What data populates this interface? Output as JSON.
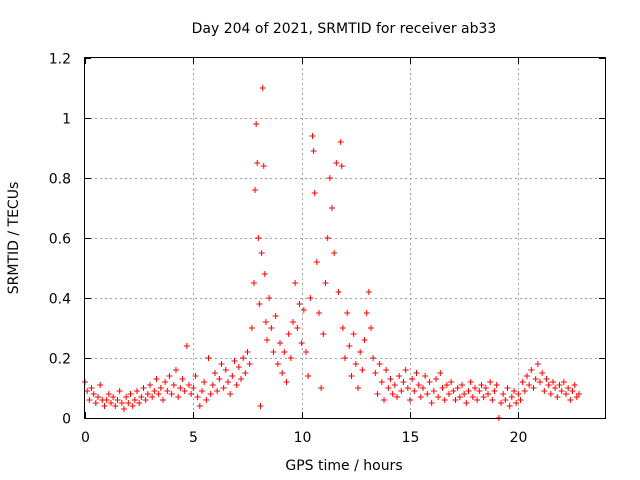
{
  "chart_data": {
    "type": "scatter",
    "title": "Day 204 of 2021, SRMTID for receiver ab33",
    "xlabel": "GPS time / hours",
    "ylabel": "SRMTID / TECUs",
    "xlim": [
      0,
      24
    ],
    "ylim": [
      0,
      1.2
    ],
    "xticks": [
      0,
      5,
      10,
      15,
      20
    ],
    "xtick_labels": [
      "0",
      "5",
      "10",
      "15",
      "20"
    ],
    "yticks": [
      0,
      0.2,
      0.4,
      0.6,
      0.8,
      1.0,
      1.2
    ],
    "ytick_labels": [
      "0",
      "0.2",
      "0.4",
      "0.6",
      "0.8",
      "1",
      "1.2"
    ],
    "grid": true,
    "marker": "plus",
    "color": "#ff0000",
    "series": [
      {
        "name": "SRMTID",
        "points": [
          [
            0.0,
            0.12
          ],
          [
            0.1,
            0.09
          ],
          [
            0.2,
            0.06
          ],
          [
            0.3,
            0.1
          ],
          [
            0.4,
            0.08
          ],
          [
            0.5,
            0.05
          ],
          [
            0.6,
            0.07
          ],
          [
            0.7,
            0.11
          ],
          [
            0.8,
            0.06
          ],
          [
            0.9,
            0.04
          ],
          [
            1.0,
            0.06
          ],
          [
            1.1,
            0.08
          ],
          [
            1.2,
            0.05
          ],
          [
            1.3,
            0.07
          ],
          [
            1.4,
            0.04
          ],
          [
            1.5,
            0.06
          ],
          [
            1.6,
            0.09
          ],
          [
            1.7,
            0.05
          ],
          [
            1.8,
            0.03
          ],
          [
            1.9,
            0.07
          ],
          [
            2.0,
            0.05
          ],
          [
            2.1,
            0.08
          ],
          [
            2.2,
            0.04
          ],
          [
            2.3,
            0.06
          ],
          [
            2.4,
            0.09
          ],
          [
            2.5,
            0.05
          ],
          [
            2.6,
            0.07
          ],
          [
            2.7,
            0.1
          ],
          [
            2.8,
            0.06
          ],
          [
            2.9,
            0.08
          ],
          [
            3.0,
            0.11
          ],
          [
            3.1,
            0.07
          ],
          [
            3.2,
            0.09
          ],
          [
            3.3,
            0.13
          ],
          [
            3.4,
            0.08
          ],
          [
            3.5,
            0.1
          ],
          [
            3.6,
            0.06
          ],
          [
            3.7,
            0.12
          ],
          [
            3.8,
            0.09
          ],
          [
            3.9,
            0.14
          ],
          [
            4.0,
            0.08
          ],
          [
            4.1,
            0.11
          ],
          [
            4.2,
            0.16
          ],
          [
            4.3,
            0.07
          ],
          [
            4.4,
            0.1
          ],
          [
            4.5,
            0.13
          ],
          [
            4.6,
            0.09
          ],
          [
            4.7,
            0.24
          ],
          [
            4.8,
            0.11
          ],
          [
            4.9,
            0.08
          ],
          [
            5.0,
            0.1
          ],
          [
            5.1,
            0.14
          ],
          [
            5.2,
            0.07
          ],
          [
            5.3,
            0.04
          ],
          [
            5.4,
            0.09
          ],
          [
            5.5,
            0.12
          ],
          [
            5.6,
            0.06
          ],
          [
            5.7,
            0.2
          ],
          [
            5.8,
            0.08
          ],
          [
            5.9,
            0.11
          ],
          [
            6.0,
            0.15
          ],
          [
            6.1,
            0.09
          ],
          [
            6.2,
            0.13
          ],
          [
            6.3,
            0.18
          ],
          [
            6.4,
            0.1
          ],
          [
            6.5,
            0.16
          ],
          [
            6.6,
            0.12
          ],
          [
            6.7,
            0.08
          ],
          [
            6.8,
            0.14
          ],
          [
            6.9,
            0.19
          ],
          [
            7.0,
            0.11
          ],
          [
            7.1,
            0.17
          ],
          [
            7.2,
            0.13
          ],
          [
            7.3,
            0.2
          ],
          [
            7.4,
            0.15
          ],
          [
            7.5,
            0.22
          ],
          [
            7.6,
            0.18
          ],
          [
            7.7,
            0.3
          ],
          [
            7.8,
            0.45
          ],
          [
            7.85,
            0.76
          ],
          [
            7.9,
            0.98
          ],
          [
            7.95,
            0.85
          ],
          [
            8.0,
            0.6
          ],
          [
            8.05,
            0.38
          ],
          [
            8.1,
            0.04
          ],
          [
            8.15,
            0.55
          ],
          [
            8.2,
            1.1
          ],
          [
            8.25,
            0.84
          ],
          [
            8.3,
            0.48
          ],
          [
            8.35,
            0.32
          ],
          [
            8.4,
            0.26
          ],
          [
            8.5,
            0.4
          ],
          [
            8.6,
            0.3
          ],
          [
            8.7,
            0.22
          ],
          [
            8.8,
            0.34
          ],
          [
            8.9,
            0.18
          ],
          [
            9.0,
            0.25
          ],
          [
            9.1,
            0.15
          ],
          [
            9.2,
            0.22
          ],
          [
            9.3,
            0.12
          ],
          [
            9.4,
            0.28
          ],
          [
            9.5,
            0.2
          ],
          [
            9.6,
            0.32
          ],
          [
            9.7,
            0.45
          ],
          [
            9.8,
            0.3
          ],
          [
            9.9,
            0.38
          ],
          [
            10.0,
            0.25
          ],
          [
            10.1,
            0.36
          ],
          [
            10.2,
            0.22
          ],
          [
            10.3,
            0.14
          ],
          [
            10.4,
            0.4
          ],
          [
            10.5,
            0.94
          ],
          [
            10.55,
            0.89
          ],
          [
            10.6,
            0.75
          ],
          [
            10.7,
            0.52
          ],
          [
            10.8,
            0.35
          ],
          [
            10.9,
            0.1
          ],
          [
            11.0,
            0.28
          ],
          [
            11.1,
            0.45
          ],
          [
            11.2,
            0.6
          ],
          [
            11.3,
            0.8
          ],
          [
            11.4,
            0.7
          ],
          [
            11.5,
            0.55
          ],
          [
            11.6,
            0.85
          ],
          [
            11.7,
            0.42
          ],
          [
            11.8,
            0.92
          ],
          [
            11.85,
            0.84
          ],
          [
            11.9,
            0.3
          ],
          [
            12.0,
            0.2
          ],
          [
            12.1,
            0.35
          ],
          [
            12.2,
            0.24
          ],
          [
            12.3,
            0.14
          ],
          [
            12.4,
            0.28
          ],
          [
            12.5,
            0.18
          ],
          [
            12.6,
            0.1
          ],
          [
            12.7,
            0.22
          ],
          [
            12.8,
            0.16
          ],
          [
            12.9,
            0.26
          ],
          [
            13.0,
            0.35
          ],
          [
            13.1,
            0.42
          ],
          [
            13.2,
            0.3
          ],
          [
            13.3,
            0.2
          ],
          [
            13.4,
            0.15
          ],
          [
            13.5,
            0.08
          ],
          [
            13.6,
            0.18
          ],
          [
            13.7,
            0.12
          ],
          [
            13.8,
            0.06
          ],
          [
            13.9,
            0.16
          ],
          [
            14.0,
            0.1
          ],
          [
            14.1,
            0.13
          ],
          [
            14.2,
            0.08
          ],
          [
            14.3,
            0.11
          ],
          [
            14.4,
            0.07
          ],
          [
            14.5,
            0.14
          ],
          [
            14.6,
            0.09
          ],
          [
            14.7,
            0.12
          ],
          [
            14.8,
            0.16
          ],
          [
            14.9,
            0.1
          ],
          [
            15.0,
            0.06
          ],
          [
            15.1,
            0.13
          ],
          [
            15.2,
            0.09
          ],
          [
            15.3,
            0.15
          ],
          [
            15.4,
            0.11
          ],
          [
            15.5,
            0.07
          ],
          [
            15.6,
            0.1
          ],
          [
            15.7,
            0.14
          ],
          [
            15.8,
            0.08
          ],
          [
            15.9,
            0.12
          ],
          [
            16.0,
            0.05
          ],
          [
            16.1,
            0.09
          ],
          [
            16.2,
            0.13
          ],
          [
            16.3,
            0.07
          ],
          [
            16.4,
            0.15
          ],
          [
            16.5,
            0.1
          ],
          [
            16.6,
            0.06
          ],
          [
            16.7,
            0.11
          ],
          [
            16.8,
            0.08
          ],
          [
            16.9,
            0.12
          ],
          [
            17.0,
            0.09
          ],
          [
            17.1,
            0.06
          ],
          [
            17.2,
            0.1
          ],
          [
            17.3,
            0.07
          ],
          [
            17.4,
            0.11
          ],
          [
            17.5,
            0.08
          ],
          [
            17.6,
            0.05
          ],
          [
            17.7,
            0.09
          ],
          [
            17.8,
            0.12
          ],
          [
            17.9,
            0.07
          ],
          [
            18.0,
            0.1
          ],
          [
            18.1,
            0.06
          ],
          [
            18.2,
            0.09
          ],
          [
            18.3,
            0.11
          ],
          [
            18.4,
            0.07
          ],
          [
            18.5,
            0.1
          ],
          [
            18.6,
            0.08
          ],
          [
            18.7,
            0.12
          ],
          [
            18.8,
            0.06
          ],
          [
            18.9,
            0.09
          ],
          [
            19.0,
            0.11
          ],
          [
            19.1,
            0.0
          ],
          [
            19.2,
            0.05
          ],
          [
            19.3,
            0.08
          ],
          [
            19.4,
            0.06
          ],
          [
            19.5,
            0.1
          ],
          [
            19.6,
            0.04
          ],
          [
            19.7,
            0.07
          ],
          [
            19.8,
            0.09
          ],
          [
            19.9,
            0.05
          ],
          [
            20.0,
            0.08
          ],
          [
            20.1,
            0.06
          ],
          [
            20.2,
            0.12
          ],
          [
            20.3,
            0.09
          ],
          [
            20.4,
            0.14
          ],
          [
            20.5,
            0.11
          ],
          [
            20.6,
            0.16
          ],
          [
            20.7,
            0.1
          ],
          [
            20.8,
            0.13
          ],
          [
            20.9,
            0.18
          ],
          [
            21.0,
            0.12
          ],
          [
            21.1,
            0.15
          ],
          [
            21.2,
            0.09
          ],
          [
            21.3,
            0.13
          ],
          [
            21.4,
            0.11
          ],
          [
            21.5,
            0.08
          ],
          [
            21.6,
            0.12
          ],
          [
            21.7,
            0.1
          ],
          [
            21.8,
            0.07
          ],
          [
            21.9,
            0.11
          ],
          [
            22.0,
            0.09
          ],
          [
            22.1,
            0.12
          ],
          [
            22.2,
            0.08
          ],
          [
            22.3,
            0.1
          ],
          [
            22.4,
            0.06
          ],
          [
            22.5,
            0.09
          ],
          [
            22.6,
            0.11
          ],
          [
            22.7,
            0.07
          ],
          [
            22.8,
            0.08
          ]
        ]
      }
    ]
  }
}
